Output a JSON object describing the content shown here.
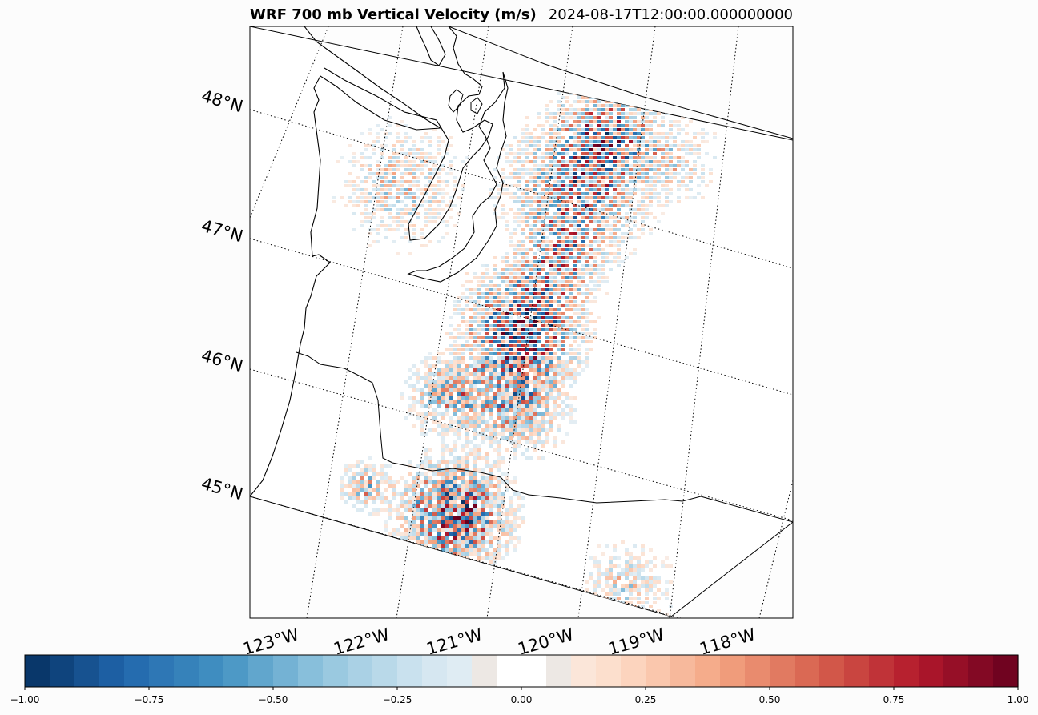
{
  "figure": {
    "title_left": "WRF 700 mb Vertical Velocity (m/s)",
    "title_right": "2024-08-17T12:00:00.000000000"
  },
  "map": {
    "lat_labels": [
      "48°N",
      "47°N",
      "46°N",
      "45°N"
    ],
    "lon_labels": [
      "123°W",
      "122°W",
      "121°W",
      "120°W",
      "119°W",
      "118°W"
    ],
    "gridline_style": "dotted",
    "features": [
      "coastline",
      "state-borders"
    ],
    "field": "vertical velocity at 700 mb",
    "colormap": "RdBu_r"
  },
  "colorbar": {
    "vmin": -1.0,
    "vmax": 1.0,
    "tick_labels": [
      "−1.00",
      "−0.75",
      "−0.50",
      "−0.25",
      "0.00",
      "0.25",
      "0.50",
      "0.75",
      "1.00"
    ],
    "colors": {
      "strong_negative": "#053061",
      "moderate_negative": "#2166ac",
      "weak_negative": "#92c5de",
      "near_zero": "#f7f7f7",
      "weak_positive": "#f4a582",
      "moderate_positive": "#d6604d",
      "strong_positive": "#67001f"
    }
  }
}
